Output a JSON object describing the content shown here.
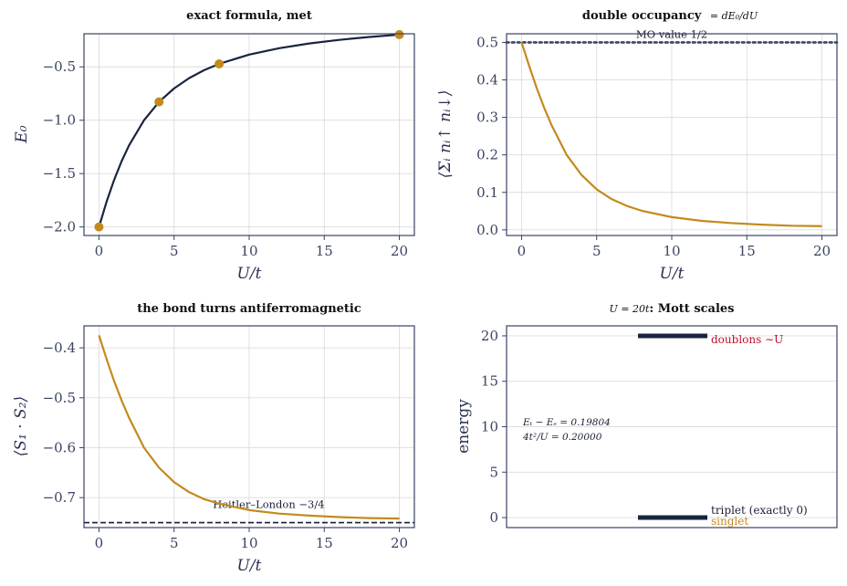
{
  "colors": {
    "navy": "#1a2440",
    "gold": "#c48a1c",
    "red": "#c0102a",
    "grid": "#dcdcdc",
    "frame": "#3a4463"
  },
  "chart_data": [
    {
      "id": "energy",
      "type": "line",
      "title": "exact formula, met",
      "xlabel": "U/t",
      "ylabel": "E₀",
      "xlim": [
        -1,
        21
      ],
      "ylim": [
        -2.08,
        -0.19
      ],
      "xticks": [
        0,
        5,
        10,
        15,
        20
      ],
      "yticks": [
        -2.0,
        -1.5,
        -1.0,
        -0.5
      ],
      "ytick_labels": [
        "−2.0",
        "−1.5",
        "−1.0",
        "−0.5"
      ],
      "grid": true,
      "series": [
        {
          "kind": "curve",
          "color": "#1a2440",
          "x": [
            0,
            0.5,
            1,
            1.5,
            2,
            3,
            4,
            5,
            6,
            7,
            8,
            10,
            12,
            14,
            16,
            18,
            20
          ],
          "y": [
            -2.0,
            -1.766,
            -1.562,
            -1.386,
            -1.236,
            -1.0,
            -0.828,
            -0.702,
            -0.606,
            -0.531,
            -0.472,
            -0.385,
            -0.325,
            -0.281,
            -0.247,
            -0.22,
            -0.198
          ]
        },
        {
          "kind": "markers",
          "color": "#c48a1c",
          "x": [
            0,
            4,
            8,
            20
          ],
          "y": [
            -2.0,
            -0.828,
            -0.472,
            -0.198
          ]
        }
      ]
    },
    {
      "id": "double_occupancy",
      "type": "line",
      "title": "double occupancy",
      "title_suffix": "= dE₀/dU",
      "xlabel": "U/t",
      "ylabel": "⟨Σᵢ nᵢ↑ nᵢ↓⟩",
      "xlim": [
        -1,
        21
      ],
      "ylim": [
        -0.015,
        0.523
      ],
      "xticks": [
        0,
        5,
        10,
        15,
        20
      ],
      "yticks": [
        0.0,
        0.1,
        0.2,
        0.3,
        0.4,
        0.5
      ],
      "ytick_labels": [
        "0.0",
        "0.1",
        "0.2",
        "0.3",
        "0.4",
        "0.5"
      ],
      "grid": true,
      "reference_line": {
        "y": 0.5,
        "style": "dotted",
        "color": "#3a4463",
        "label": "MO value 1/2"
      },
      "series": [
        {
          "kind": "curve",
          "color": "#c48a1c",
          "x": [
            0,
            0.5,
            1,
            1.5,
            2,
            3,
            4,
            5,
            6,
            7,
            8,
            10,
            12,
            14,
            16,
            18,
            20
          ],
          "y": [
            0.5,
            0.438,
            0.379,
            0.326,
            0.279,
            0.2,
            0.146,
            0.108,
            0.082,
            0.064,
            0.051,
            0.034,
            0.024,
            0.018,
            0.014,
            0.011,
            0.0099
          ]
        }
      ]
    },
    {
      "id": "spin_correlation",
      "type": "line",
      "title": "the bond turns antiferromagnetic",
      "xlabel": "U/t",
      "ylabel": "⟨S₁ · S₂⟩",
      "xlim": [
        -1,
        21
      ],
      "ylim": [
        -0.76,
        -0.356
      ],
      "xticks": [
        0,
        5,
        10,
        15,
        20
      ],
      "yticks": [
        -0.4,
        -0.5,
        -0.6,
        -0.7
      ],
      "ytick_labels": [
        "−0.4",
        "−0.5",
        "−0.6",
        "−0.7"
      ],
      "grid": true,
      "reference_line": {
        "y": -0.75,
        "style": "dashed",
        "color": "#1a1f36",
        "label": "Heitler–London −3/4"
      },
      "series": [
        {
          "kind": "curve",
          "color": "#c48a1c",
          "x": [
            0,
            0.5,
            1,
            1.5,
            2,
            3,
            4,
            5,
            6,
            7,
            8,
            10,
            12,
            14,
            16,
            18,
            20
          ],
          "y": [
            -0.375,
            -0.422,
            -0.466,
            -0.505,
            -0.54,
            -0.6,
            -0.64,
            -0.669,
            -0.689,
            -0.703,
            -0.712,
            -0.725,
            -0.732,
            -0.736,
            -0.739,
            -0.741,
            -0.742
          ]
        }
      ]
    },
    {
      "id": "mott_scales",
      "type": "levels",
      "title_prefix": "U = 20t",
      "title": "Mott scales",
      "ylabel": "energy",
      "ylim": [
        -1.1,
        21.1
      ],
      "yticks": [
        0,
        5,
        10,
        15,
        20
      ],
      "ytick_labels": [
        "0",
        "5",
        "10",
        "15",
        "20"
      ],
      "grid": true,
      "levels": [
        {
          "energy": 20.0,
          "label": "doublons ∼U",
          "color": "#c0102a"
        },
        {
          "energy": 0.0,
          "label": "triplet (exactly 0)",
          "color": "#1a1f36"
        },
        {
          "energy": -0.198,
          "label": "singlet",
          "color": "#c48a1c"
        }
      ],
      "annotations": [
        "Eₜ − Eₛ = 0.19804",
        "4t²/U = 0.20000"
      ]
    }
  ]
}
